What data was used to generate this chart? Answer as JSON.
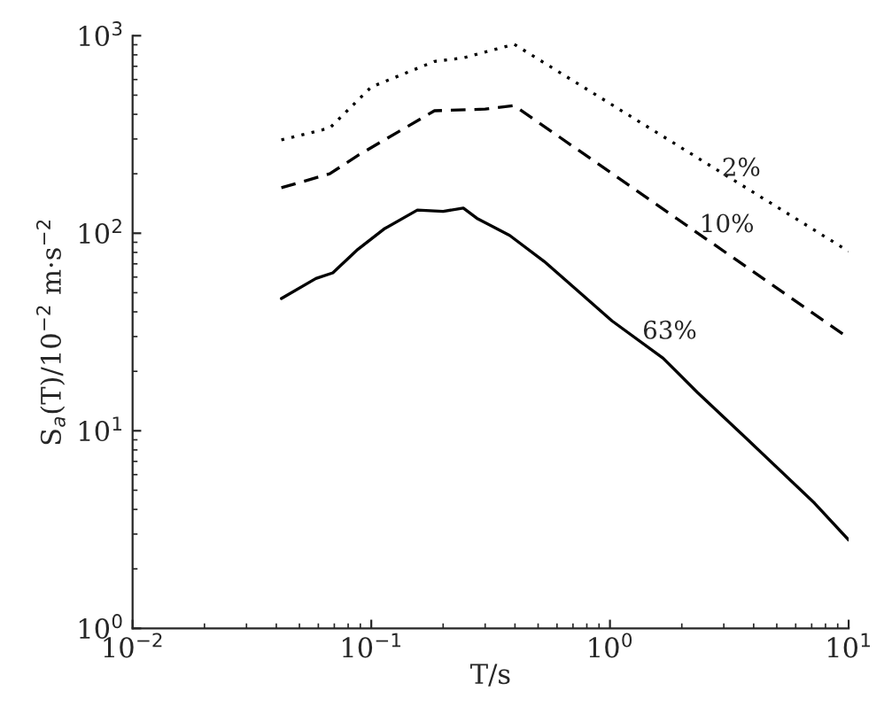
{
  "chart_data": {
    "type": "line",
    "xlabel": "T/s",
    "ylabel": "S$_{a}$(T)/10$^{−2}$ m·s$^{−2}$",
    "log": "xy",
    "grid": false,
    "legend": false,
    "xlim": [
      0.01,
      10
    ],
    "ylim": [
      1,
      1000
    ],
    "xticks": [
      {
        "value": 0.01,
        "label": "10$^{−2}$"
      },
      {
        "value": 0.1,
        "label": "10$^{−1}$"
      },
      {
        "value": 1,
        "label": "10$^{0}$"
      },
      {
        "value": 10,
        "label": "10$^{1}$"
      }
    ],
    "yticks": [
      {
        "value": 1,
        "label": "10$^{0}$"
      },
      {
        "value": 10,
        "label": "10$^{1}$"
      },
      {
        "value": 100,
        "label": "10$^{2}$"
      },
      {
        "value": 1000,
        "label": "10$^{3}$"
      }
    ],
    "series": [
      {
        "color": "#000000",
        "line_style": "dotted",
        "x": [
          0.042,
          0.067,
          0.1,
          0.184,
          0.243,
          0.397,
          10
        ],
        "values": [
          297,
          341,
          550,
          741,
          772,
          905,
          81
        ]
      },
      {
        "color": "#000000",
        "line_style": "dashed",
        "x": [
          0.042,
          0.067,
          0.088,
          0.184,
          0.3,
          0.397,
          10
        ],
        "values": [
          170,
          200,
          248,
          417,
          425,
          443,
          29.5
        ]
      },
      {
        "color": "#000000",
        "line_style": "solid",
        "x": [
          0.042,
          0.0586,
          0.069,
          0.088,
          0.113,
          0.156,
          0.2,
          0.243,
          0.277,
          0.38,
          0.53,
          0.74,
          1.02,
          1.67,
          2.33,
          3.8,
          7.2,
          10
        ],
        "values": [
          46.7,
          59,
          63,
          83,
          105,
          131,
          129,
          134,
          119,
          97.5,
          72,
          50.6,
          36,
          23.3,
          15.6,
          8.95,
          4.3,
          2.8
        ]
      }
    ],
    "annotations": [
      "2%",
      "10%",
      "63%"
    ]
  }
}
